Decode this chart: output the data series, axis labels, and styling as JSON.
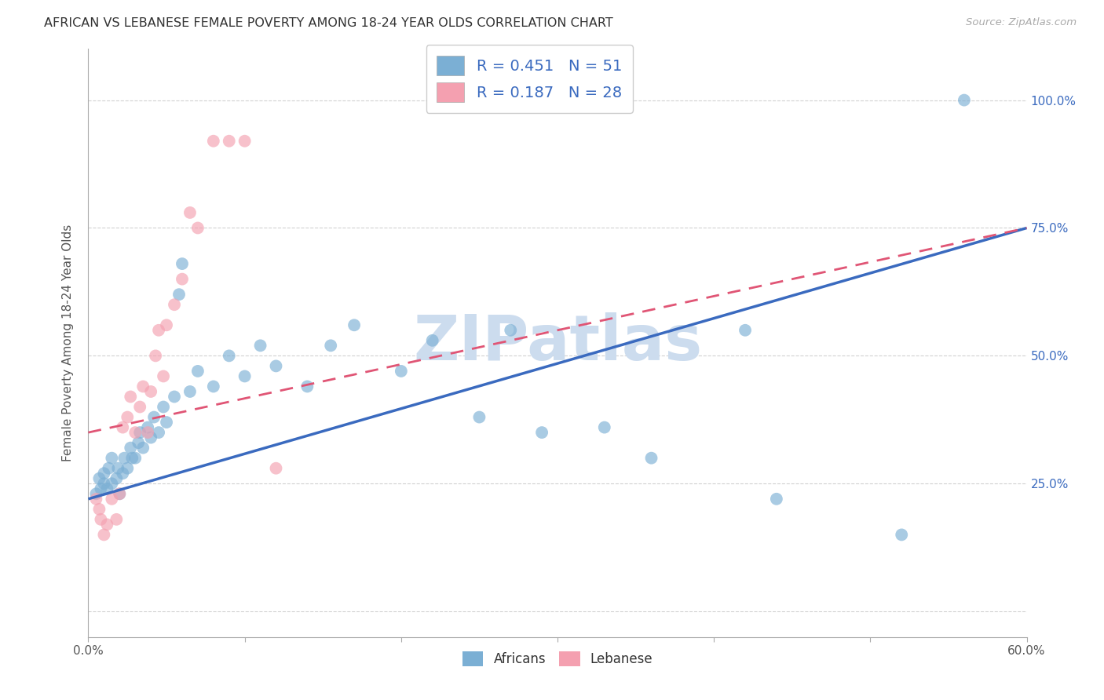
{
  "title": "AFRICAN VS LEBANESE FEMALE POVERTY AMONG 18-24 YEAR OLDS CORRELATION CHART",
  "source": "Source: ZipAtlas.com",
  "ylabel": "Female Poverty Among 18-24 Year Olds",
  "xlim": [
    0.0,
    0.6
  ],
  "ylim": [
    -0.05,
    1.1
  ],
  "xticks": [
    0.0,
    0.1,
    0.2,
    0.3,
    0.4,
    0.5,
    0.6
  ],
  "yticks": [
    0.0,
    0.25,
    0.5,
    0.75,
    1.0
  ],
  "ytick_labels": [
    "",
    "25.0%",
    "50.0%",
    "75.0%",
    "100.0%"
  ],
  "xtick_labels": [
    "0.0%",
    "",
    "",
    "",
    "",
    "",
    "60.0%"
  ],
  "african_color": "#7bafd4",
  "lebanese_color": "#f4a0b0",
  "african_line_color": "#3a6abf",
  "lebanese_line_color": "#e05575",
  "background_color": "#ffffff",
  "watermark_text": "ZIPatlas",
  "watermark_color": "#ccdcee",
  "R_african": 0.451,
  "N_african": 51,
  "R_lebanese": 0.187,
  "N_lebanese": 28,
  "african_x": [
    0.005,
    0.007,
    0.008,
    0.01,
    0.01,
    0.012,
    0.013,
    0.015,
    0.015,
    0.018,
    0.019,
    0.02,
    0.022,
    0.023,
    0.025,
    0.027,
    0.028,
    0.03,
    0.032,
    0.033,
    0.035,
    0.038,
    0.04,
    0.042,
    0.045,
    0.048,
    0.05,
    0.055,
    0.058,
    0.06,
    0.065,
    0.07,
    0.08,
    0.09,
    0.1,
    0.11,
    0.12,
    0.14,
    0.155,
    0.17,
    0.2,
    0.22,
    0.25,
    0.27,
    0.29,
    0.33,
    0.36,
    0.42,
    0.44,
    0.52,
    0.56
  ],
  "african_y": [
    0.23,
    0.26,
    0.24,
    0.25,
    0.27,
    0.24,
    0.28,
    0.25,
    0.3,
    0.26,
    0.28,
    0.23,
    0.27,
    0.3,
    0.28,
    0.32,
    0.3,
    0.3,
    0.33,
    0.35,
    0.32,
    0.36,
    0.34,
    0.38,
    0.35,
    0.4,
    0.37,
    0.42,
    0.62,
    0.68,
    0.43,
    0.47,
    0.44,
    0.5,
    0.46,
    0.52,
    0.48,
    0.44,
    0.52,
    0.56,
    0.47,
    0.53,
    0.38,
    0.55,
    0.35,
    0.36,
    0.3,
    0.55,
    0.22,
    0.15,
    1.0
  ],
  "lebanese_x": [
    0.005,
    0.007,
    0.008,
    0.01,
    0.012,
    0.015,
    0.018,
    0.02,
    0.022,
    0.025,
    0.027,
    0.03,
    0.033,
    0.035,
    0.038,
    0.04,
    0.043,
    0.045,
    0.048,
    0.05,
    0.055,
    0.06,
    0.065,
    0.07,
    0.08,
    0.09,
    0.1,
    0.12
  ],
  "lebanese_y": [
    0.22,
    0.2,
    0.18,
    0.15,
    0.17,
    0.22,
    0.18,
    0.23,
    0.36,
    0.38,
    0.42,
    0.35,
    0.4,
    0.44,
    0.35,
    0.43,
    0.5,
    0.55,
    0.46,
    0.56,
    0.6,
    0.65,
    0.78,
    0.75,
    0.92,
    0.92,
    0.92,
    0.28
  ],
  "blue_line_x": [
    0.0,
    0.6
  ],
  "blue_line_y": [
    0.22,
    0.75
  ],
  "pink_line_x": [
    0.0,
    0.6
  ],
  "pink_line_y": [
    0.35,
    0.75
  ]
}
